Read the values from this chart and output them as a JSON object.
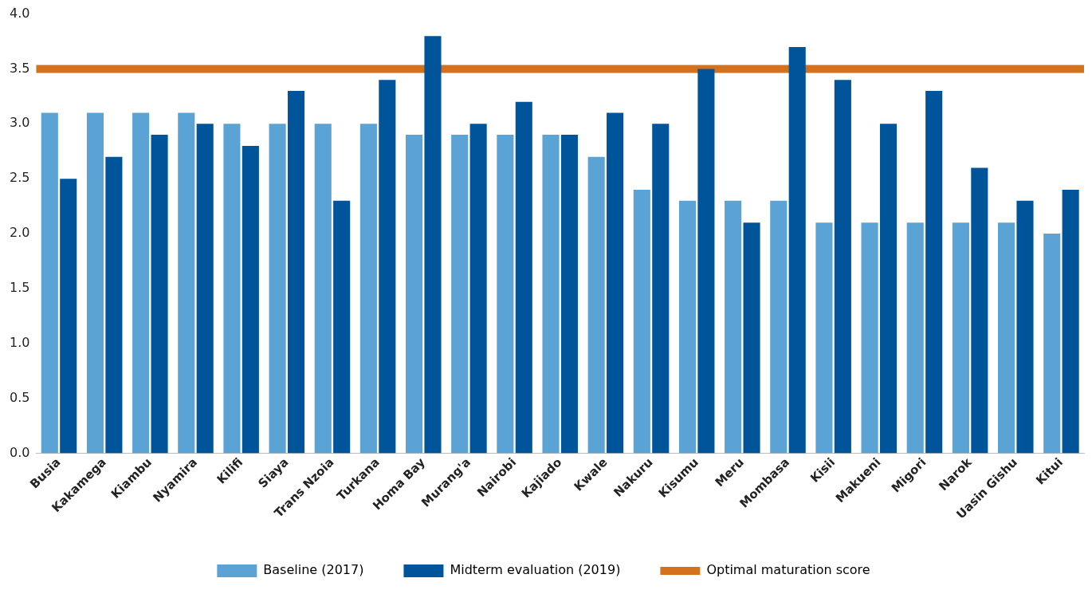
{
  "chart_data": {
    "type": "bar",
    "categories": [
      "Busia",
      "Kakamega",
      "Kiambu",
      "Nyamira",
      "Kilifi",
      "Siaya",
      "Trans Nzoia",
      "Turkana",
      "Homa Bay",
      "Murang'a",
      "Nairobi",
      "Kajiado",
      "Kwale",
      "Nakuru",
      "Kisumu",
      "Meru",
      "Mombasa",
      "Kisii",
      "Makueni",
      "Migori",
      "Narok",
      "Uasin Gishu",
      "Kitui"
    ],
    "series": [
      {
        "name": "Baseline (2017)",
        "color": "#5ba3d4",
        "values": [
          3.1,
          3.1,
          3.1,
          3.1,
          3.0,
          3.0,
          3.0,
          3.0,
          2.9,
          2.9,
          2.9,
          2.9,
          2.7,
          2.4,
          2.3,
          2.3,
          2.3,
          2.1,
          2.1,
          2.1,
          2.1,
          2.1,
          2.0
        ]
      },
      {
        "name": "Midterm evaluation (2019)",
        "color": "#00549a",
        "values": [
          2.5,
          2.7,
          2.9,
          3.0,
          2.8,
          3.3,
          2.3,
          3.4,
          3.8,
          3.0,
          3.2,
          2.9,
          3.1,
          3.0,
          3.5,
          2.1,
          3.7,
          3.4,
          3.0,
          3.3,
          2.6,
          2.3,
          2.4
        ]
      }
    ],
    "ylim": [
      0,
      4.0
    ],
    "yticks": [
      {
        "value": 0,
        "label": "0.0"
      },
      {
        "value": 0.5,
        "label": "0.5"
      },
      {
        "value": 1,
        "label": "1.0"
      },
      {
        "value": 1.5,
        "label": "1.5"
      },
      {
        "value": 2,
        "label": "2.0"
      },
      {
        "value": 2.5,
        "label": "2.5"
      },
      {
        "value": 3,
        "label": "3.0"
      },
      {
        "value": 3.5,
        "label": "3.5"
      },
      {
        "value": 4,
        "label": "4.0"
      }
    ],
    "ref_lines": [
      {
        "axis": "y",
        "value": 3.5,
        "label": "Optimal maturation score",
        "color": "#d4711c"
      }
    ],
    "grid": false,
    "legend": "bottom"
  }
}
